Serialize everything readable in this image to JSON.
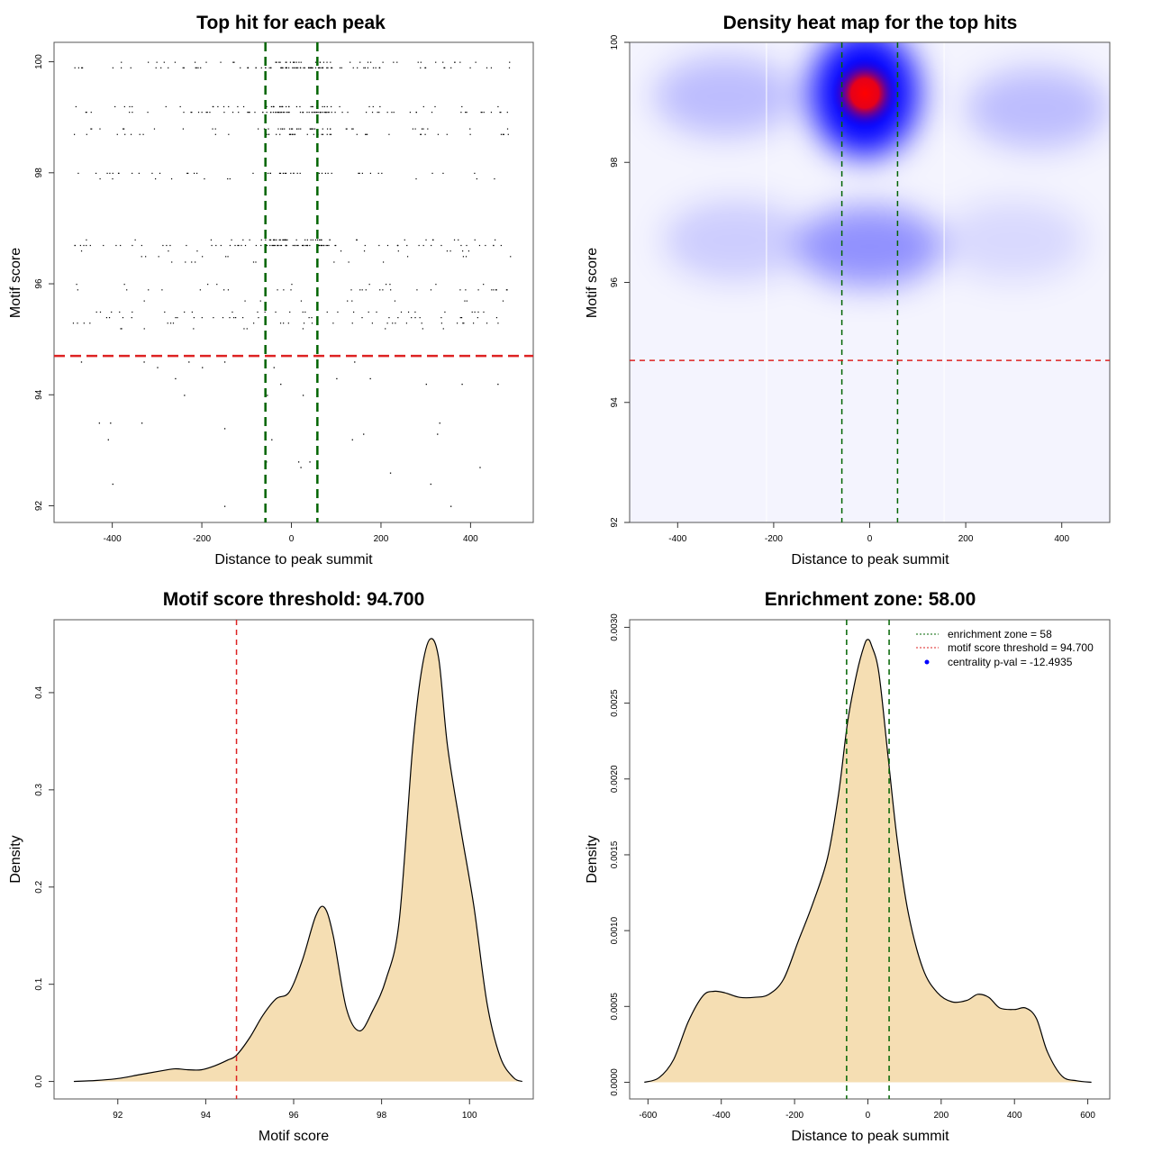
{
  "chart_data": [
    {
      "type": "scatter",
      "title": "Top hit for each peak",
      "xlabel": "Distance to peak summit",
      "ylabel": "Motif score",
      "xlim": [
        -530,
        540
      ],
      "ylim": [
        91.7,
        100.35
      ],
      "xticks": [
        -400,
        -200,
        0,
        200,
        400
      ],
      "yticks": [
        92,
        94,
        96,
        98,
        100
      ],
      "xtick_labels": [
        "-400",
        "-200",
        "0",
        "200",
        "400"
      ],
      "ytick_labels": [
        "92",
        "94",
        "96",
        "98",
        "100"
      ],
      "score_rows": [
        {
          "y": 100.0,
          "density": "medium",
          "center_dense": true
        },
        {
          "y": 99.9,
          "density": "high",
          "center_dense": true
        },
        {
          "y": 99.2,
          "density": "medium",
          "center_dense": true
        },
        {
          "y": 99.1,
          "density": "high",
          "center_dense": true
        },
        {
          "y": 98.8,
          "density": "medium",
          "center_dense": true
        },
        {
          "y": 98.7,
          "density": "medium",
          "center_dense": true
        },
        {
          "y": 98.0,
          "density": "medium",
          "center_dense": true
        },
        {
          "y": 97.9,
          "density": "low",
          "center_dense": false
        },
        {
          "y": 96.8,
          "density": "medium",
          "center_dense": true
        },
        {
          "y": 96.7,
          "density": "high",
          "center_dense": true
        },
        {
          "y": 96.6,
          "density": "low",
          "center_dense": false
        },
        {
          "y": 96.5,
          "density": "low",
          "center_dense": false
        },
        {
          "y": 96.4,
          "density": "low",
          "center_dense": false
        },
        {
          "y": 96.0,
          "density": "low",
          "center_dense": false
        },
        {
          "y": 95.9,
          "density": "medium",
          "center_dense": false
        },
        {
          "y": 95.7,
          "density": "low",
          "center_dense": false
        },
        {
          "y": 95.5,
          "density": "medium",
          "center_dense": false
        },
        {
          "y": 95.4,
          "density": "medium",
          "center_dense": false
        },
        {
          "y": 95.3,
          "density": "medium",
          "center_dense": false
        },
        {
          "y": 95.2,
          "density": "low",
          "center_dense": false
        }
      ],
      "sparse_points": [
        [
          -470,
          94.6
        ],
        [
          -330,
          94.6
        ],
        [
          -230,
          94.6
        ],
        [
          -150,
          94.6
        ],
        [
          -40,
          94.5
        ],
        [
          -300,
          94.5
        ],
        [
          -200,
          94.5
        ],
        [
          -260,
          94.3
        ],
        [
          -25,
          94.2
        ],
        [
          100,
          94.3
        ],
        [
          140,
          94.6
        ],
        [
          175,
          94.3
        ],
        [
          300,
          94.2
        ],
        [
          380,
          94.2
        ],
        [
          460,
          94.2
        ],
        [
          -240,
          94.0
        ],
        [
          -55,
          94.0
        ],
        [
          25,
          94.0
        ],
        [
          -430,
          93.5
        ],
        [
          -405,
          93.5
        ],
        [
          -335,
          93.5
        ],
        [
          -150,
          93.4
        ],
        [
          330,
          93.5
        ],
        [
          -410,
          93.2
        ],
        [
          -45,
          93.2
        ],
        [
          55,
          93.2
        ],
        [
          135,
          93.2
        ],
        [
          160,
          93.3
        ],
        [
          325,
          93.3
        ],
        [
          -57,
          92.8
        ],
        [
          15,
          92.8
        ],
        [
          20,
          92.7
        ],
        [
          40,
          92.8
        ],
        [
          220,
          92.6
        ],
        [
          420,
          92.7
        ],
        [
          -400,
          92.4
        ],
        [
          310,
          92.4
        ],
        [
          -150,
          92.0
        ],
        [
          355,
          92.0
        ]
      ],
      "vlines": {
        "values": [
          -58,
          58
        ],
        "color": "#006400",
        "style": "dashed"
      },
      "hline": {
        "value": 94.7,
        "color": "#DD2222",
        "style": "dashed"
      }
    },
    {
      "type": "heatmap",
      "title": "Density heat map for the top hits",
      "xlabel": "Distance to peak summit",
      "ylabel": "Motif score",
      "xlim": [
        -500,
        500
      ],
      "ylim": [
        92,
        100
      ],
      "xticks": [
        -400,
        -200,
        0,
        200,
        400
      ],
      "yticks": [
        92,
        94,
        96,
        98,
        100
      ],
      "xtick_labels": [
        "-400",
        "-200",
        "0",
        "200",
        "400"
      ],
      "ytick_labels": [
        "92",
        "94",
        "96",
        "98",
        "100"
      ],
      "colormap": [
        "#FFFFFF",
        "#0000FF",
        "#FF0000"
      ],
      "hotspots": [
        {
          "x": -10,
          "y": 99.15,
          "intensity": 1.0,
          "label": "peak"
        },
        {
          "x": 0,
          "y": 96.6,
          "intensity": 0.45
        },
        {
          "x": -300,
          "y": 99.1,
          "intensity": 0.25
        },
        {
          "x": 350,
          "y": 98.9,
          "intensity": 0.25
        },
        {
          "x": -280,
          "y": 96.7,
          "intensity": 0.18
        },
        {
          "x": 300,
          "y": 96.7,
          "intensity": 0.12
        }
      ],
      "white_gridlines_x": [
        -200,
        0,
        200
      ],
      "vlines": {
        "values": [
          -58,
          58
        ],
        "color": "#006400",
        "style": "dashed"
      },
      "hline": {
        "value": 94.7,
        "color": "#DD2222",
        "style": "dashed"
      }
    },
    {
      "type": "area",
      "title": "Motif score threshold: 94.700",
      "xlabel": "Motif score",
      "ylabel": "Density",
      "xlim": [
        90.55,
        101.45
      ],
      "ylim": [
        -0.018,
        0.475
      ],
      "xticks": [
        92,
        94,
        96,
        98,
        100
      ],
      "yticks": [
        0.0,
        0.1,
        0.2,
        0.3,
        0.4
      ],
      "xtick_labels": [
        "92",
        "94",
        "96",
        "98",
        "100"
      ],
      "ytick_labels": [
        "0.0",
        "0.1",
        "0.2",
        "0.3",
        "0.4"
      ],
      "fill": "#F5DEB3",
      "x": [
        91.0,
        91.5,
        92.0,
        92.5,
        93.0,
        93.3,
        93.6,
        93.9,
        94.2,
        94.5,
        94.7,
        95.0,
        95.3,
        95.6,
        95.9,
        96.2,
        96.5,
        96.7,
        96.9,
        97.2,
        97.5,
        97.8,
        98.1,
        98.4,
        98.7,
        98.9,
        99.1,
        99.3,
        99.5,
        99.8,
        100.1,
        100.4,
        100.7,
        101.0,
        101.2
      ],
      "y": [
        0.0,
        0.001,
        0.003,
        0.007,
        0.011,
        0.013,
        0.012,
        0.012,
        0.016,
        0.022,
        0.027,
        0.045,
        0.068,
        0.085,
        0.092,
        0.125,
        0.17,
        0.179,
        0.15,
        0.075,
        0.052,
        0.073,
        0.105,
        0.165,
        0.34,
        0.42,
        0.455,
        0.435,
        0.345,
        0.26,
        0.18,
        0.08,
        0.025,
        0.004,
        0.0
      ],
      "vline": {
        "value": 94.7,
        "color": "#DD2222",
        "style": "dashed"
      }
    },
    {
      "type": "area",
      "title": "Enrichment zone: 58.00",
      "xlabel": "Distance to peak summit",
      "ylabel": "Density",
      "xlim": [
        -650,
        660
      ],
      "ylim": [
        -0.00011,
        0.00305
      ],
      "xticks": [
        -600,
        -400,
        -200,
        0,
        200,
        400,
        600
      ],
      "yticks": [
        0.0,
        0.0005,
        0.001,
        0.0015,
        0.002,
        0.0025,
        0.003
      ],
      "xtick_labels": [
        "-600",
        "-400",
        "-200",
        "0",
        "200",
        "400",
        "600"
      ],
      "ytick_labels": [
        "0.0000",
        "0.0005",
        "0.0010",
        "0.0015",
        "0.0020",
        "0.0025",
        "0.0030"
      ],
      "fill": "#F5DEB3",
      "x": [
        -610,
        -570,
        -530,
        -490,
        -450,
        -420,
        -390,
        -350,
        -310,
        -270,
        -230,
        -190,
        -150,
        -110,
        -80,
        -55,
        -30,
        -10,
        0,
        10,
        30,
        55,
        80,
        110,
        150,
        190,
        230,
        270,
        300,
        330,
        360,
        400,
        430,
        460,
        490,
        530,
        570,
        610
      ],
      "y": [
        0.0,
        3e-05,
        0.00015,
        0.0004,
        0.00057,
        0.0006,
        0.00059,
        0.00056,
        0.00056,
        0.00058,
        0.00068,
        0.00093,
        0.00118,
        0.00148,
        0.0019,
        0.00238,
        0.0027,
        0.00288,
        0.00292,
        0.00288,
        0.0027,
        0.00215,
        0.0016,
        0.00112,
        0.00075,
        0.00059,
        0.00053,
        0.00054,
        0.00058,
        0.00056,
        0.00049,
        0.00048,
        0.00049,
        0.00042,
        0.0002,
        4e-05,
        1e-05,
        0.0
      ],
      "vlines": {
        "values": [
          -58,
          58
        ],
        "color": "#006400",
        "style": "dashed"
      },
      "legend": {
        "placement": "top-right",
        "entries": [
          {
            "label": "enrichment zone = 58",
            "color": "#006400",
            "style": "dotted-line"
          },
          {
            "label": "motif score threshold = 94.700",
            "color": "#DD2222",
            "style": "dotted-line"
          },
          {
            "label": "centrality p-val = -12.4935",
            "color": "#0000FF",
            "style": "point"
          }
        ]
      }
    }
  ]
}
